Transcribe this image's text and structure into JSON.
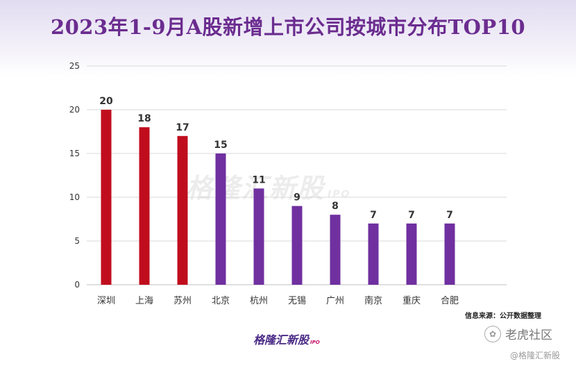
{
  "title": "2023年1-9月A股新增上市公司按城市分布TOP10",
  "source": "信息来源：公开数据整理",
  "logo": {
    "text": "格隆汇新股",
    "suffix": "IPO"
  },
  "watermark": {
    "text": "格隆汇新股",
    "suffix": "IPO"
  },
  "footer": {
    "community": "老虎社区",
    "handle": "@格隆汇新股"
  },
  "colors": {
    "red": "#c00d1e",
    "purple": "#7030a0",
    "title": "#6b2c8f"
  },
  "chart_data": {
    "type": "bar",
    "title": "2023年1-9月A股新增上市公司按城市分布TOP10",
    "categories": [
      "深圳",
      "上海",
      "苏州",
      "北京",
      "杭州",
      "无锡",
      "广州",
      "南京",
      "重庆",
      "合肥"
    ],
    "values": [
      20,
      18,
      17,
      15,
      11,
      9,
      8,
      7,
      7,
      7
    ],
    "bar_colors": [
      "#c00d1e",
      "#c00d1e",
      "#c00d1e",
      "#7030a0",
      "#7030a0",
      "#7030a0",
      "#7030a0",
      "#7030a0",
      "#7030a0",
      "#7030a0"
    ],
    "ylim": [
      0,
      25
    ],
    "yticks": [
      0,
      5,
      10,
      15,
      20,
      25
    ],
    "grid": true,
    "xlabel": "",
    "ylabel": ""
  }
}
